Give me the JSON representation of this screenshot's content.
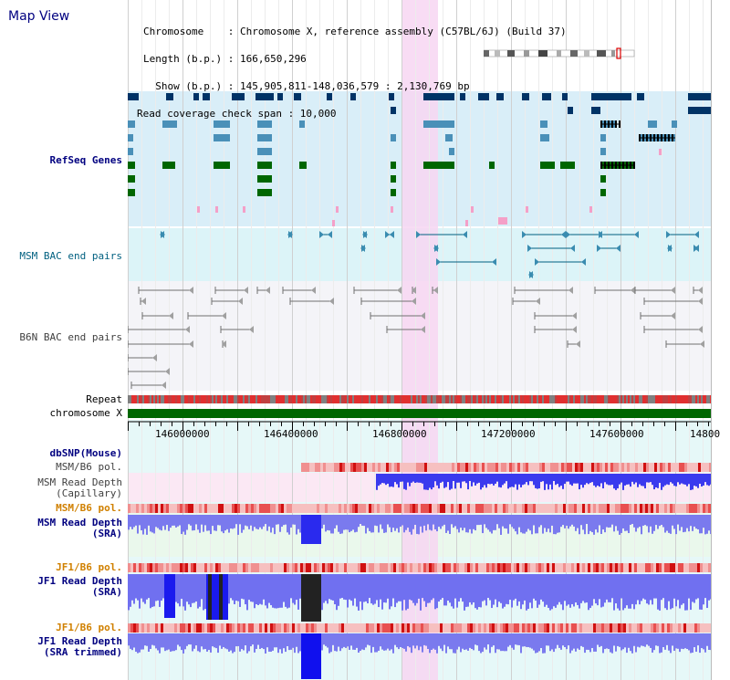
{
  "title": "Map View",
  "info": {
    "chromosome_line": "Chromosome    : Chromosome X, reference assembly (C57BL/6J) (Build 37)",
    "length_line": "Length (b.p.) : 166,650,296",
    "show_line": "  Show (b.p.) : 145,905,811-148,036,579 : 2,130,769 bp",
    "coverage_line": "Read coverage check span : 10,000"
  },
  "tracks": {
    "refseq": "RefSeq Genes",
    "msm_bac": "MSM BAC end pairs",
    "b6n_bac": "B6N BAC end pairs",
    "repeat": "Repeat",
    "chromosome": "chromosome X",
    "dbsnp": "dbSNP(Mouse)",
    "msm_b6_pol_cap": "MSM/B6 pol.",
    "msm_depth_cap_1": "MSM Read Depth",
    "msm_depth_cap_2": "(Capillary)",
    "msm_b6_pol_sra": "MSM/B6 pol.",
    "msm_depth_sra_1": "MSM Read Depth",
    "msm_depth_sra_2": "(SRA)",
    "jf1_b6_pol": "JF1/B6 pol.",
    "jf1_depth_1": "JF1 Read Depth",
    "jf1_depth_2": "(SRA)",
    "jf1_b6_pol_trim": "JF1/B6 pol.",
    "jf1_trim_1": "JF1 Read Depth",
    "jf1_trim_2": "(SRA trimmed)"
  },
  "axis": {
    "ticks": [
      "146000000",
      "146400000",
      "146800000",
      "147200000",
      "147600000",
      "14800"
    ]
  },
  "colors": {
    "navy": "#000080",
    "teal_label": "#006080",
    "grey_label": "#404040",
    "orange_label": "#d08000",
    "gene_dark": "#003366",
    "gene_mid": "#4a90b8",
    "gene_green": "#006600",
    "highlight": "#f7d6f2"
  }
}
